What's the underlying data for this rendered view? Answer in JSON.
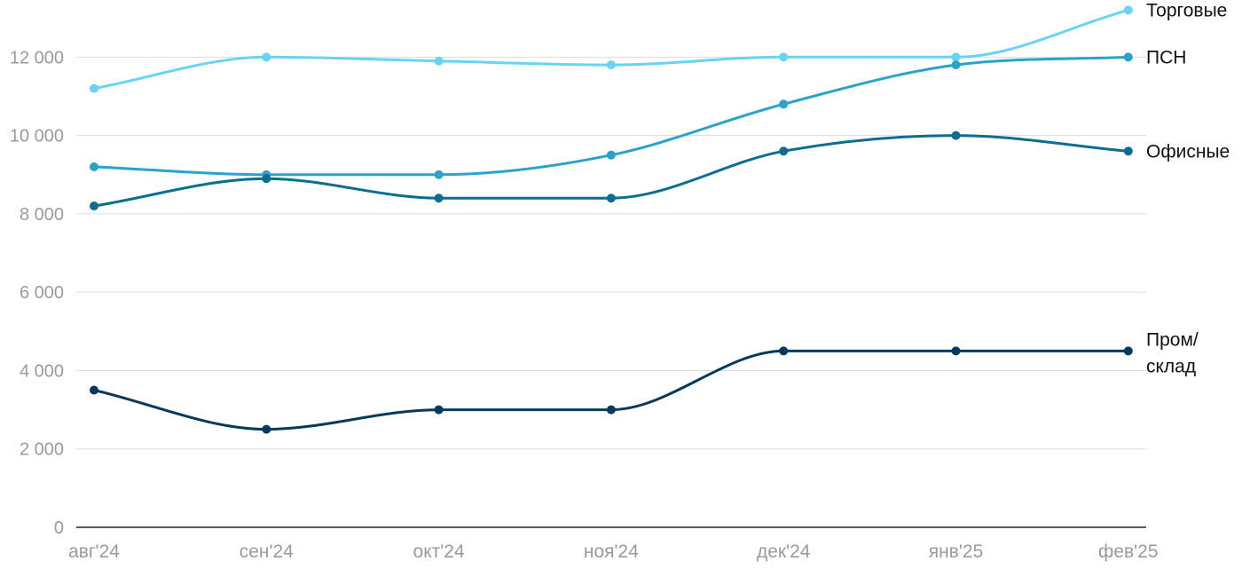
{
  "chart_data": {
    "type": "line",
    "categories": [
      "авг'24",
      "сен'24",
      "окт'24",
      "ноя'24",
      "дек'24",
      "янв'25",
      "фев'25"
    ],
    "ylim": [
      0,
      12000
    ],
    "yticks": [
      0,
      2000,
      4000,
      6000,
      8000,
      10000,
      12000
    ],
    "ytick_labels": [
      "0",
      "2 000",
      "4 000",
      "6 000",
      "8 000",
      "10 000",
      "12 000"
    ],
    "grid": true,
    "legend": "inline-right",
    "series": [
      {
        "name": "Торговые",
        "color": "#66d4f5",
        "values": [
          11200,
          12000,
          11900,
          11800,
          12000,
          12000,
          13200
        ]
      },
      {
        "name": "ПСН",
        "color": "#27a3cc",
        "values": [
          9200,
          9000,
          9000,
          9500,
          10800,
          11800,
          12000
        ]
      },
      {
        "name": "Офисные",
        "color": "#0a6d94",
        "values": [
          8200,
          8900,
          8400,
          8400,
          9600,
          10000,
          9600
        ]
      },
      {
        "name": "Пром/\nсклад",
        "name_lines": [
          "Пром/",
          "склад"
        ],
        "color": "#063a5c",
        "values": [
          3500,
          2500,
          3000,
          3000,
          4500,
          4500,
          4500
        ]
      }
    ]
  }
}
